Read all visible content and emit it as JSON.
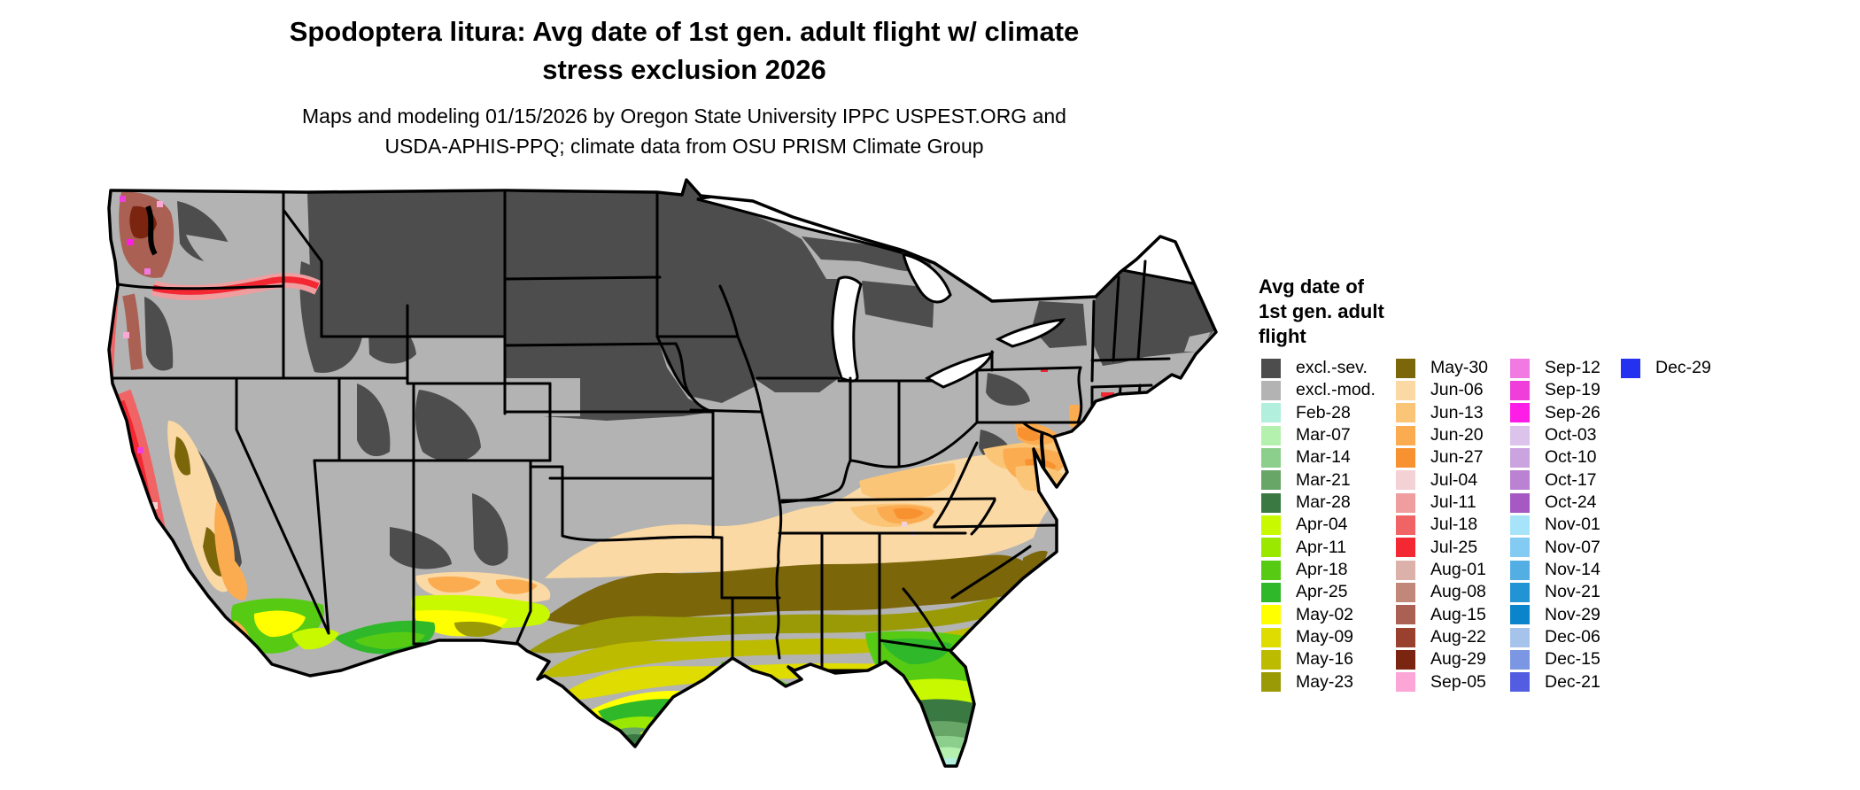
{
  "header": {
    "title_line1": "Spodoptera litura: Avg date of 1st gen. adult flight w/ climate",
    "title_line2": "stress exclusion 2026",
    "subtitle_line1": "Maps and modeling 01/15/2026 by Oregon State University IPPC USPEST.ORG and",
    "subtitle_line2": "USDA-APHIS-PPQ; climate data from OSU PRISM Climate Group"
  },
  "legend": {
    "title": "Avg date of\n1st gen. adult\nflight",
    "columns": [
      {
        "items": [
          {
            "label": "excl.-sev.",
            "key": "excl_sev"
          },
          {
            "label": "excl.-mod.",
            "key": "excl_mod"
          },
          {
            "label": "Feb-28",
            "key": "Feb-28"
          },
          {
            "label": "Mar-07",
            "key": "Mar-07"
          },
          {
            "label": "Mar-14",
            "key": "Mar-14"
          },
          {
            "label": "Mar-21",
            "key": "Mar-21"
          },
          {
            "label": "Mar-28",
            "key": "Mar-28"
          },
          {
            "label": "Apr-04",
            "key": "Apr-04"
          },
          {
            "label": "Apr-11",
            "key": "Apr-11"
          },
          {
            "label": "Apr-18",
            "key": "Apr-18"
          },
          {
            "label": "Apr-25",
            "key": "Apr-25"
          },
          {
            "label": "May-02",
            "key": "May-02"
          },
          {
            "label": "May-09",
            "key": "May-09"
          },
          {
            "label": "May-16",
            "key": "May-16"
          },
          {
            "label": "May-23",
            "key": "May-23"
          }
        ]
      },
      {
        "items": [
          {
            "label": "May-30",
            "key": "May-30"
          },
          {
            "label": "Jun-06",
            "key": "Jun-06"
          },
          {
            "label": "Jun-13",
            "key": "Jun-13"
          },
          {
            "label": "Jun-20",
            "key": "Jun-20"
          },
          {
            "label": "Jun-27",
            "key": "Jun-27"
          },
          {
            "label": "Jul-04",
            "key": "Jul-04"
          },
          {
            "label": "Jul-11",
            "key": "Jul-11"
          },
          {
            "label": "Jul-18",
            "key": "Jul-18"
          },
          {
            "label": "Jul-25",
            "key": "Jul-25"
          },
          {
            "label": "Aug-01",
            "key": "Aug-01"
          },
          {
            "label": "Aug-08",
            "key": "Aug-08"
          },
          {
            "label": "Aug-15",
            "key": "Aug-15"
          },
          {
            "label": "Aug-22",
            "key": "Aug-22"
          },
          {
            "label": "Aug-29",
            "key": "Aug-29"
          },
          {
            "label": "Sep-05",
            "key": "Sep-05"
          }
        ]
      },
      {
        "items": [
          {
            "label": "Sep-12",
            "key": "Sep-12"
          },
          {
            "label": "Sep-19",
            "key": "Sep-19"
          },
          {
            "label": "Sep-26",
            "key": "Sep-26"
          },
          {
            "label": "Oct-03",
            "key": "Oct-03"
          },
          {
            "label": "Oct-10",
            "key": "Oct-10"
          },
          {
            "label": "Oct-17",
            "key": "Oct-17"
          },
          {
            "label": "Oct-24",
            "key": "Oct-24"
          },
          {
            "label": "Nov-01",
            "key": "Nov-01"
          },
          {
            "label": "Nov-07",
            "key": "Nov-07"
          },
          {
            "label": "Nov-14",
            "key": "Nov-14"
          },
          {
            "label": "Nov-21",
            "key": "Nov-21"
          },
          {
            "label": "Nov-29",
            "key": "Nov-29"
          },
          {
            "label": "Dec-06",
            "key": "Dec-06"
          },
          {
            "label": "Dec-15",
            "key": "Dec-15"
          },
          {
            "label": "Dec-21",
            "key": "Dec-21"
          }
        ]
      },
      {
        "items": [
          {
            "label": "Dec-29",
            "key": "Dec-29"
          }
        ]
      }
    ]
  },
  "palette": {
    "excl_sev": "#4d4d4d",
    "excl_mod": "#b3b3b3",
    "Feb-28": "#b2f0dd",
    "Mar-07": "#b5f1ae",
    "Mar-14": "#8cce8c",
    "Mar-21": "#68a668",
    "Mar-28": "#3a7a42",
    "Apr-04": "#c9f900",
    "Apr-11": "#9ae800",
    "Apr-18": "#57cb13",
    "Apr-25": "#2fb82a",
    "May-02": "#ffff00",
    "May-09": "#dedc00",
    "May-16": "#bdbb00",
    "May-23": "#9a9a06",
    "May-30": "#7c660a",
    "Jun-06": "#fbd9a4",
    "Jun-13": "#fbc577",
    "Jun-20": "#fbac50",
    "Jun-27": "#f89231",
    "Jul-04": "#f3d1d5",
    "Jul-11": "#f09da0",
    "Jul-18": "#f06465",
    "Jul-25": "#f32832",
    "Aug-01": "#dcb1aa",
    "Aug-08": "#c1887a",
    "Aug-15": "#aa6153",
    "Aug-22": "#9a402f",
    "Aug-29": "#7b2410",
    "Sep-05": "#fba6d7",
    "Sep-12": "#f07ae1",
    "Sep-19": "#ef3eda",
    "Sep-26": "#fe1de7",
    "Oct-03": "#dcc3eb",
    "Oct-10": "#cba3df",
    "Oct-17": "#bb81d3",
    "Oct-24": "#a659c3",
    "Nov-01": "#a7e4f9",
    "Nov-07": "#83cbf3",
    "Nov-14": "#53afe3",
    "Nov-21": "#2394d3",
    "Nov-29": "#0a85cb",
    "Dec-06": "#a6c3eb",
    "Dec-15": "#7b97e3",
    "Dec-21": "#525de1",
    "Dec-29": "#2432f0"
  }
}
